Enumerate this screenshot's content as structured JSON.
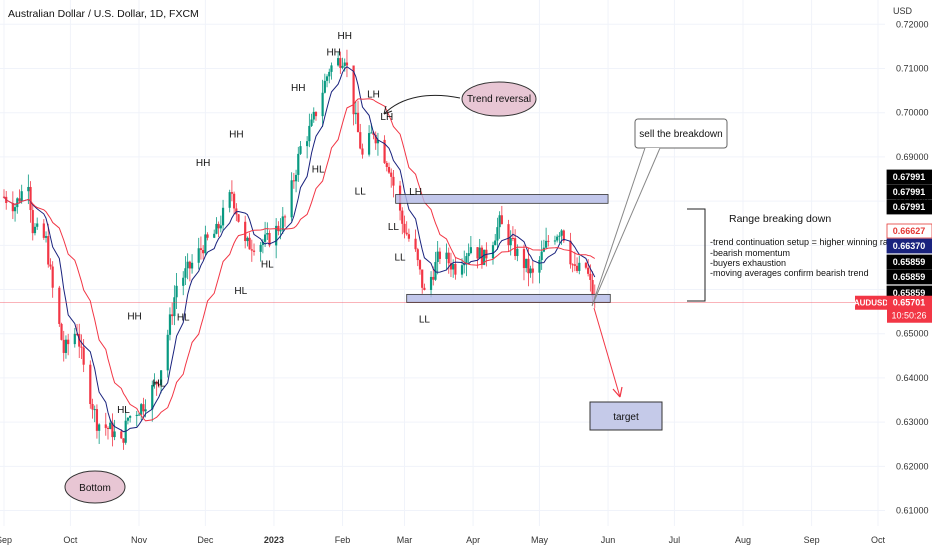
{
  "header": {
    "title": "Australian Dollar / U.S. Dollar, 1D, FXCM",
    "currency": "USD"
  },
  "chart_data": {
    "type": "candlestick",
    "symbol": "AUDUSD",
    "ylim": [
      0.6065,
      0.7255
    ],
    "y_ticks": [
      "0.72000",
      "0.71000",
      "0.70000",
      "0.69000",
      "0.68000",
      "0.67000",
      "0.66000",
      "0.65000",
      "0.64000",
      "0.63000",
      "0.62000",
      "0.61000"
    ],
    "y_tick_values": [
      0.72,
      0.71,
      0.7,
      0.69,
      0.68,
      0.67,
      0.66,
      0.65,
      0.64,
      0.63,
      0.62,
      0.61
    ],
    "x_ticks": [
      "Sep",
      "Oct",
      "Nov",
      "Dec",
      "2023",
      "Feb",
      "Mar",
      "Apr",
      "May",
      "Jun",
      "Jul",
      "Aug",
      "Sep",
      "Oct"
    ],
    "x_tick_dates": [
      "2022-09-01",
      "2022-10-01",
      "2022-11-01",
      "2022-12-01",
      "2023-01-01",
      "2023-02-01",
      "2023-03-01",
      "2023-04-01",
      "2023-05-01",
      "2023-06-01",
      "2023-07-01",
      "2023-08-01",
      "2023-09-01",
      "2023-10-01"
    ],
    "x_range": [
      "2022-09-01",
      "2023-10-01"
    ],
    "price_badges": [
      {
        "value": "0.67991",
        "bg": "#000000",
        "fg": "#ffffff"
      },
      {
        "value": "0.67991",
        "bg": "#000000",
        "fg": "#ffffff"
      },
      {
        "value": "0.67991",
        "bg": "#000000",
        "fg": "#ffffff"
      },
      {
        "value": "0.66627",
        "bg": "#ffffff",
        "fg": "#e53935"
      },
      {
        "value": "0.66370",
        "bg": "#1a237e",
        "fg": "#ffffff"
      },
      {
        "value": "0.65859",
        "bg": "#000000",
        "fg": "#ffffff"
      },
      {
        "value": "0.65859",
        "bg": "#000000",
        "fg": "#ffffff"
      },
      {
        "value": "0.65859",
        "bg": "#000000",
        "fg": "#ffffff"
      }
    ],
    "last_price": {
      "symbol": "AUDUSD",
      "value": "0.65701",
      "countdown": "10:50:26",
      "color": "#f23645"
    },
    "swing_labels": [
      {
        "text": "HH",
        "date": "2022-11-30",
        "price": 0.687,
        "anchor": "above"
      },
      {
        "text": "HH",
        "date": "2022-12-15",
        "price": 0.6935,
        "anchor": "above"
      },
      {
        "text": "HH",
        "date": "2023-01-12",
        "price": 0.704,
        "anchor": "above"
      },
      {
        "text": "HH",
        "date": "2023-01-28",
        "price": 0.712,
        "anchor": "above"
      },
      {
        "text": "HH",
        "date": "2023-02-02",
        "price": 0.7158,
        "anchor": "above"
      },
      {
        "text": "LH",
        "date": "2023-02-15",
        "price": 0.7025,
        "anchor": "above"
      },
      {
        "text": "LH",
        "date": "2023-02-21",
        "price": 0.6975,
        "anchor": "above"
      },
      {
        "text": "LH",
        "date": "2023-03-06",
        "price": 0.6805,
        "anchor": "above"
      },
      {
        "text": "HH",
        "date": "2022-10-30",
        "price": 0.6523,
        "anchor": "above"
      },
      {
        "text": "HL",
        "date": "2022-10-25",
        "price": 0.6345,
        "anchor": "below"
      },
      {
        "text": "HL",
        "date": "2022-11-10",
        "price": 0.6405,
        "anchor": "below"
      },
      {
        "text": "HL",
        "date": "2022-11-21",
        "price": 0.6555,
        "anchor": "below"
      },
      {
        "text": "HL",
        "date": "2022-12-17",
        "price": 0.6615,
        "anchor": "below"
      },
      {
        "text": "HL",
        "date": "2022-12-29",
        "price": 0.6675,
        "anchor": "below"
      },
      {
        "text": "HL",
        "date": "2023-01-21",
        "price": 0.689,
        "anchor": "below"
      },
      {
        "text": "LL",
        "date": "2023-02-09",
        "price": 0.684,
        "anchor": "below"
      },
      {
        "text": "LL",
        "date": "2023-02-24",
        "price": 0.676,
        "anchor": "below"
      },
      {
        "text": "LL",
        "date": "2023-02-27",
        "price": 0.669,
        "anchor": "below"
      },
      {
        "text": "LL",
        "date": "2023-03-10",
        "price": 0.655,
        "anchor": "below"
      }
    ],
    "zones": [
      {
        "date_start": "2023-02-25",
        "date_end": "2023-06-01",
        "price_high": 0.6815,
        "price_low": 0.6795,
        "color": "#b3b9e6"
      },
      {
        "date_start": "2023-03-02",
        "date_end": "2023-06-02",
        "price_high": 0.6589,
        "price_low": 0.6571,
        "color": "#b3b9e6"
      }
    ],
    "annotations": {
      "bottom": "Bottom",
      "trend_reversal": "Trend reversal",
      "sell_breakdown": "sell the breakdown",
      "range_title": "Range breaking down",
      "range_notes": [
        "-trend continuation setup = higher winning rate",
        "-bearish momentum",
        "-buyers exhaustion",
        "-moving averages confirm bearish trend"
      ],
      "target": "target"
    },
    "colors": {
      "up": "#089981",
      "down": "#f23645",
      "ma_fast": "#1a237e",
      "ma_slow": "#f23645",
      "zone": "#b3b9e6",
      "bubble": "#e8c6d4",
      "target_box": "#c5cae9"
    }
  }
}
